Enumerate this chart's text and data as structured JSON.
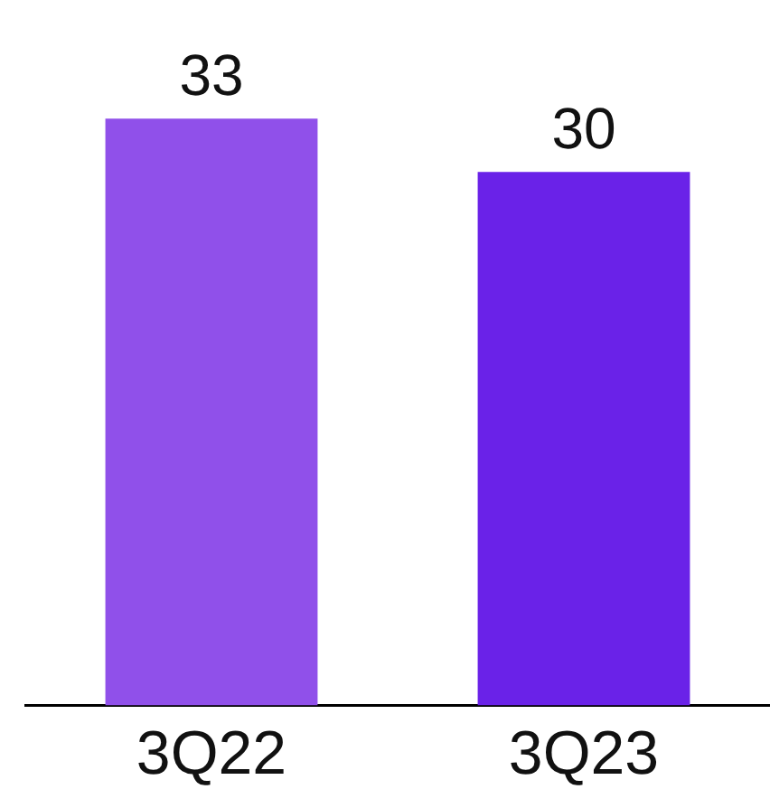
{
  "chart_data": {
    "type": "bar",
    "categories": [
      "3Q22",
      "3Q23"
    ],
    "values": [
      33,
      30
    ],
    "colors": [
      "#9050ea",
      "#6a22e8"
    ],
    "tick_labels": "x",
    "data_labels": true
  }
}
